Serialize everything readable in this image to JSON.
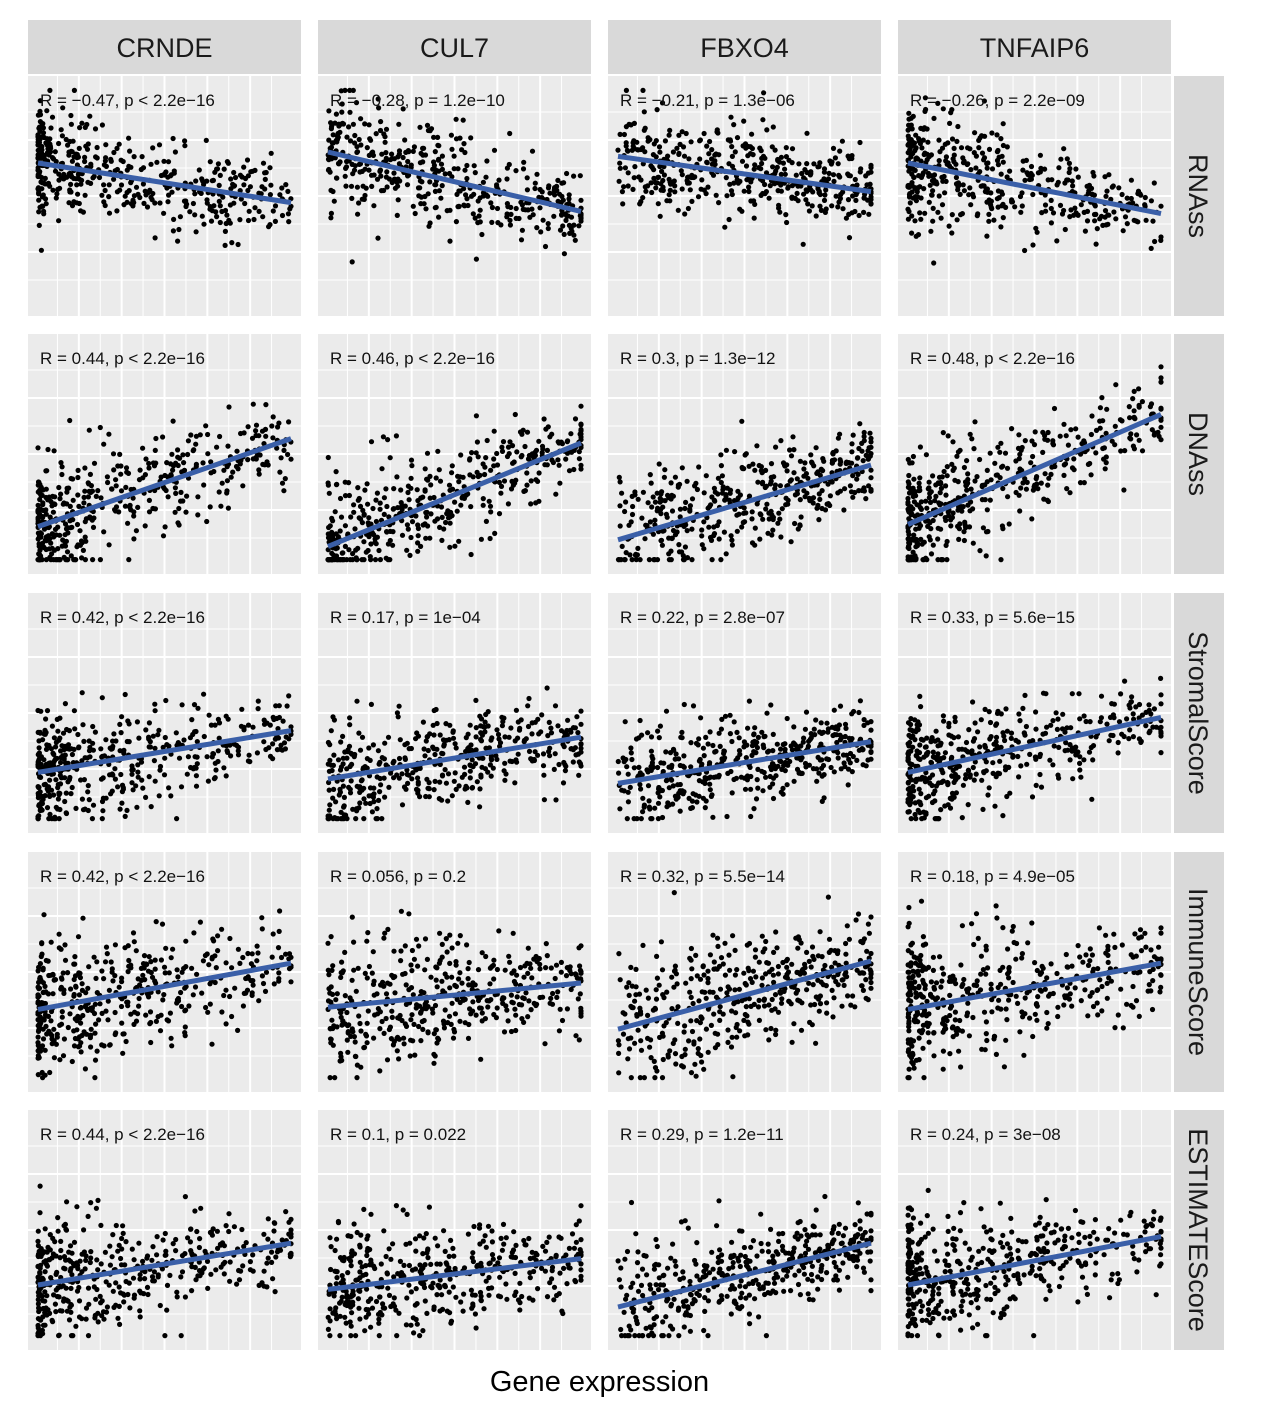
{
  "chart_data": {
    "type": "scatter",
    "xlabel": "Gene expression",
    "ylabel": "",
    "grid": true,
    "columns": [
      "CRNDE",
      "CUL7",
      "FBXO4",
      "TNFAIP6"
    ],
    "rows": [
      "RNAss",
      "DNAss",
      "StromalScore",
      "ImmuneScore",
      "ESTIMATEScore"
    ],
    "colors": {
      "panel_bg": "#ebebeb",
      "strip_bg": "#d9d9d9",
      "grid": "#ffffff",
      "points": "#000000",
      "fit_line": "#3a5fa8"
    },
    "panels": [
      {
        "column": "CRNDE",
        "row": "RNAss",
        "annotation": "R = −0.47, p < 2.2e−16",
        "fit": {
          "y_left": 0.65,
          "y_right": 0.47
        },
        "x_skew": 2.0,
        "y_mean": 0.6,
        "y_sd": 0.14
      },
      {
        "column": "CUL7",
        "row": "RNAss",
        "annotation": "R = −0.28, p = 1.2e−10",
        "fit": {
          "y_left": 0.7,
          "y_right": 0.43
        },
        "x_skew": 1.3,
        "y_mean": 0.6,
        "y_sd": 0.14
      },
      {
        "column": "FBXO4",
        "row": "RNAss",
        "annotation": "R = −0.21, p = 1.3e−06",
        "fit": {
          "y_left": 0.68,
          "y_right": 0.52
        },
        "x_skew": 1.0,
        "y_mean": 0.6,
        "y_sd": 0.14
      },
      {
        "column": "TNFAIP6",
        "row": "RNAss",
        "annotation": "R = −0.26, p = 2.2e−09",
        "fit": {
          "y_left": 0.65,
          "y_right": 0.42
        },
        "x_skew": 2.0,
        "y_mean": 0.6,
        "y_sd": 0.14
      },
      {
        "column": "CRNDE",
        "row": "DNAss",
        "annotation": "R = 0.44, p < 2.2e−16",
        "fit": {
          "y_left": 0.17,
          "y_right": 0.57
        },
        "x_skew": 2.0,
        "y_mean": 0.3,
        "y_sd": 0.15
      },
      {
        "column": "CUL7",
        "row": "DNAss",
        "annotation": "R = 0.46, p < 2.2e−16",
        "fit": {
          "y_left": 0.08,
          "y_right": 0.55
        },
        "x_skew": 1.3,
        "y_mean": 0.3,
        "y_sd": 0.15
      },
      {
        "column": "FBXO4",
        "row": "DNAss",
        "annotation": "R = 0.3, p = 1.3e−12",
        "fit": {
          "y_left": 0.11,
          "y_right": 0.45
        },
        "x_skew": 1.0,
        "y_mean": 0.3,
        "y_sd": 0.15
      },
      {
        "column": "TNFAIP6",
        "row": "DNAss",
        "annotation": "R = 0.48, p < 2.2e−16",
        "fit": {
          "y_left": 0.18,
          "y_right": 0.68
        },
        "x_skew": 2.0,
        "y_mean": 0.3,
        "y_sd": 0.15
      },
      {
        "column": "CRNDE",
        "row": "StromalScore",
        "annotation": "R = 0.42, p < 2.2e−16",
        "fit": {
          "y_left": 0.23,
          "y_right": 0.42
        },
        "x_skew": 2.0,
        "y_mean": 0.3,
        "y_sd": 0.14
      },
      {
        "column": "CUL7",
        "row": "StromalScore",
        "annotation": "R = 0.17, p = 1e−04",
        "fit": {
          "y_left": 0.2,
          "y_right": 0.39
        },
        "x_skew": 1.3,
        "y_mean": 0.3,
        "y_sd": 0.14
      },
      {
        "column": "FBXO4",
        "row": "StromalScore",
        "annotation": "R = 0.22, p = 2.8e−07",
        "fit": {
          "y_left": 0.18,
          "y_right": 0.37
        },
        "x_skew": 1.0,
        "y_mean": 0.3,
        "y_sd": 0.14
      },
      {
        "column": "TNFAIP6",
        "row": "StromalScore",
        "annotation": "R = 0.33, p = 5.6e−15",
        "fit": {
          "y_left": 0.23,
          "y_right": 0.48
        },
        "x_skew": 2.0,
        "y_mean": 0.3,
        "y_sd": 0.14
      },
      {
        "column": "CRNDE",
        "row": "ImmuneScore",
        "annotation": "R = 0.42, p < 2.2e−16",
        "fit": {
          "y_left": 0.33,
          "y_right": 0.54
        },
        "x_skew": 2.0,
        "y_mean": 0.4,
        "y_sd": 0.17
      },
      {
        "column": "CUL7",
        "row": "ImmuneScore",
        "annotation": "R = 0.056, p = 0.2",
        "fit": {
          "y_left": 0.34,
          "y_right": 0.45
        },
        "x_skew": 1.3,
        "y_mean": 0.4,
        "y_sd": 0.17
      },
      {
        "column": "FBXO4",
        "row": "ImmuneScore",
        "annotation": "R = 0.32, p = 5.5e−14",
        "fit": {
          "y_left": 0.24,
          "y_right": 0.55
        },
        "x_skew": 1.0,
        "y_mean": 0.4,
        "y_sd": 0.17
      },
      {
        "column": "TNFAIP6",
        "row": "ImmuneScore",
        "annotation": "R = 0.18, p = 4.9e−05",
        "fit": {
          "y_left": 0.33,
          "y_right": 0.54
        },
        "x_skew": 2.0,
        "y_mean": 0.4,
        "y_sd": 0.17
      },
      {
        "column": "CRNDE",
        "row": "ESTIMATEScore",
        "annotation": "R = 0.44, p < 2.2e−16",
        "fit": {
          "y_left": 0.25,
          "y_right": 0.44
        },
        "x_skew": 2.0,
        "y_mean": 0.33,
        "y_sd": 0.15
      },
      {
        "column": "CUL7",
        "row": "ESTIMATEScore",
        "annotation": "R = 0.1, p = 0.022",
        "fit": {
          "y_left": 0.23,
          "y_right": 0.37
        },
        "x_skew": 1.3,
        "y_mean": 0.33,
        "y_sd": 0.15
      },
      {
        "column": "FBXO4",
        "row": "ESTIMATEScore",
        "annotation": "R = 0.29, p = 1.2e−11",
        "fit": {
          "y_left": 0.15,
          "y_right": 0.44
        },
        "x_skew": 1.0,
        "y_mean": 0.33,
        "y_sd": 0.15
      },
      {
        "column": "TNFAIP6",
        "row": "ESTIMATEScore",
        "annotation": "R = 0.24, p = 3e−08",
        "fit": {
          "y_left": 0.25,
          "y_right": 0.47
        },
        "x_skew": 2.0,
        "y_mean": 0.33,
        "y_sd": 0.15
      }
    ]
  }
}
